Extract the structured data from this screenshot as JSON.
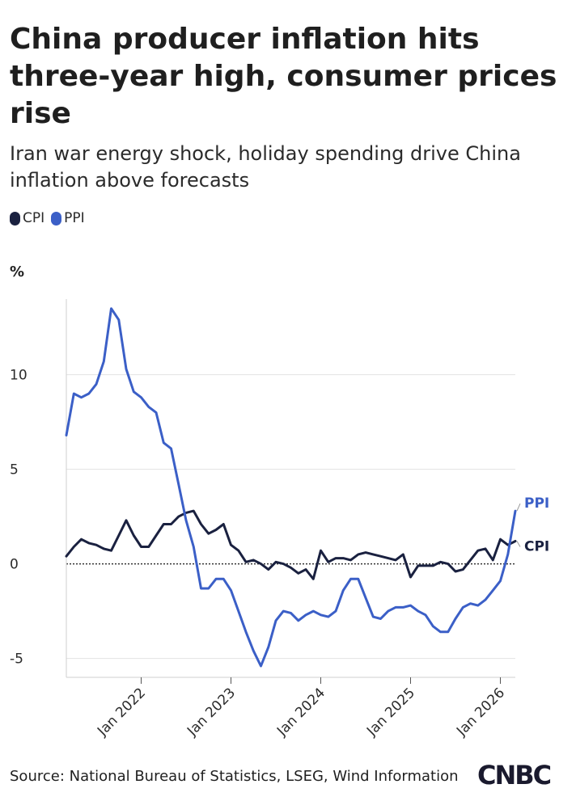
{
  "chart_data": {
    "type": "line",
    "title": "China producer inflation hits three-year high, consumer prices rise",
    "subtitle": "Iran war energy shock, holiday spending drive China inflation above forecasts",
    "ylabel": "%",
    "xlabel": "",
    "ylim": [
      -6,
      14
    ],
    "yticks": [
      -5,
      0,
      5,
      10
    ],
    "xticks": [
      "Jan 2022",
      "Jan 2023",
      "Jan 2024",
      "Jan 2025",
      "Jan 2026"
    ],
    "x_start": "2021-03",
    "x_end": "2026-03",
    "grid": true,
    "legend": "top-left",
    "series": [
      {
        "name": "CPI",
        "color": "#1a2140",
        "values": [
          0.4,
          0.9,
          1.3,
          1.1,
          1.0,
          0.8,
          0.7,
          1.5,
          2.3,
          1.5,
          0.9,
          0.9,
          1.5,
          2.1,
          2.1,
          2.5,
          2.7,
          2.8,
          2.1,
          1.6,
          1.8,
          2.1,
          1.0,
          0.7,
          0.1,
          0.2,
          0.0,
          -0.3,
          0.1,
          0.0,
          -0.2,
          -0.5,
          -0.3,
          -0.8,
          0.7,
          0.1,
          0.3,
          0.3,
          0.2,
          0.5,
          0.6,
          0.5,
          0.4,
          0.3,
          0.2,
          0.5,
          -0.7,
          -0.1,
          -0.1,
          -0.1,
          0.1,
          0.0,
          -0.4,
          -0.3,
          0.2,
          0.7,
          0.8,
          0.2,
          1.3,
          1.0,
          1.2
        ],
        "end_label": "CPI"
      },
      {
        "name": "PPI",
        "color": "#3b5fc7",
        "values": [
          6.8,
          9.0,
          8.8,
          9.0,
          9.5,
          10.7,
          13.5,
          12.9,
          10.3,
          9.1,
          8.8,
          8.3,
          8.0,
          6.4,
          6.1,
          4.2,
          2.3,
          0.9,
          -1.3,
          -1.3,
          -0.8,
          -0.8,
          -1.4,
          -2.5,
          -3.6,
          -4.6,
          -5.4,
          -4.4,
          -3.0,
          -2.5,
          -2.6,
          -3.0,
          -2.7,
          -2.5,
          -2.7,
          -2.8,
          -2.5,
          -1.4,
          -0.8,
          -0.8,
          -1.8,
          -2.8,
          -2.9,
          -2.5,
          -2.3,
          -2.3,
          -2.2,
          -2.5,
          -2.7,
          -3.3,
          -3.6,
          -3.6,
          -2.9,
          -2.3,
          -2.1,
          -2.2,
          -1.9,
          -1.4,
          -0.9,
          0.5,
          2.8
        ],
        "end_label": "PPI"
      }
    ]
  },
  "source": "Source: National Bureau of Statistics, LSEG, Wind Information",
  "logo": "CNBC"
}
